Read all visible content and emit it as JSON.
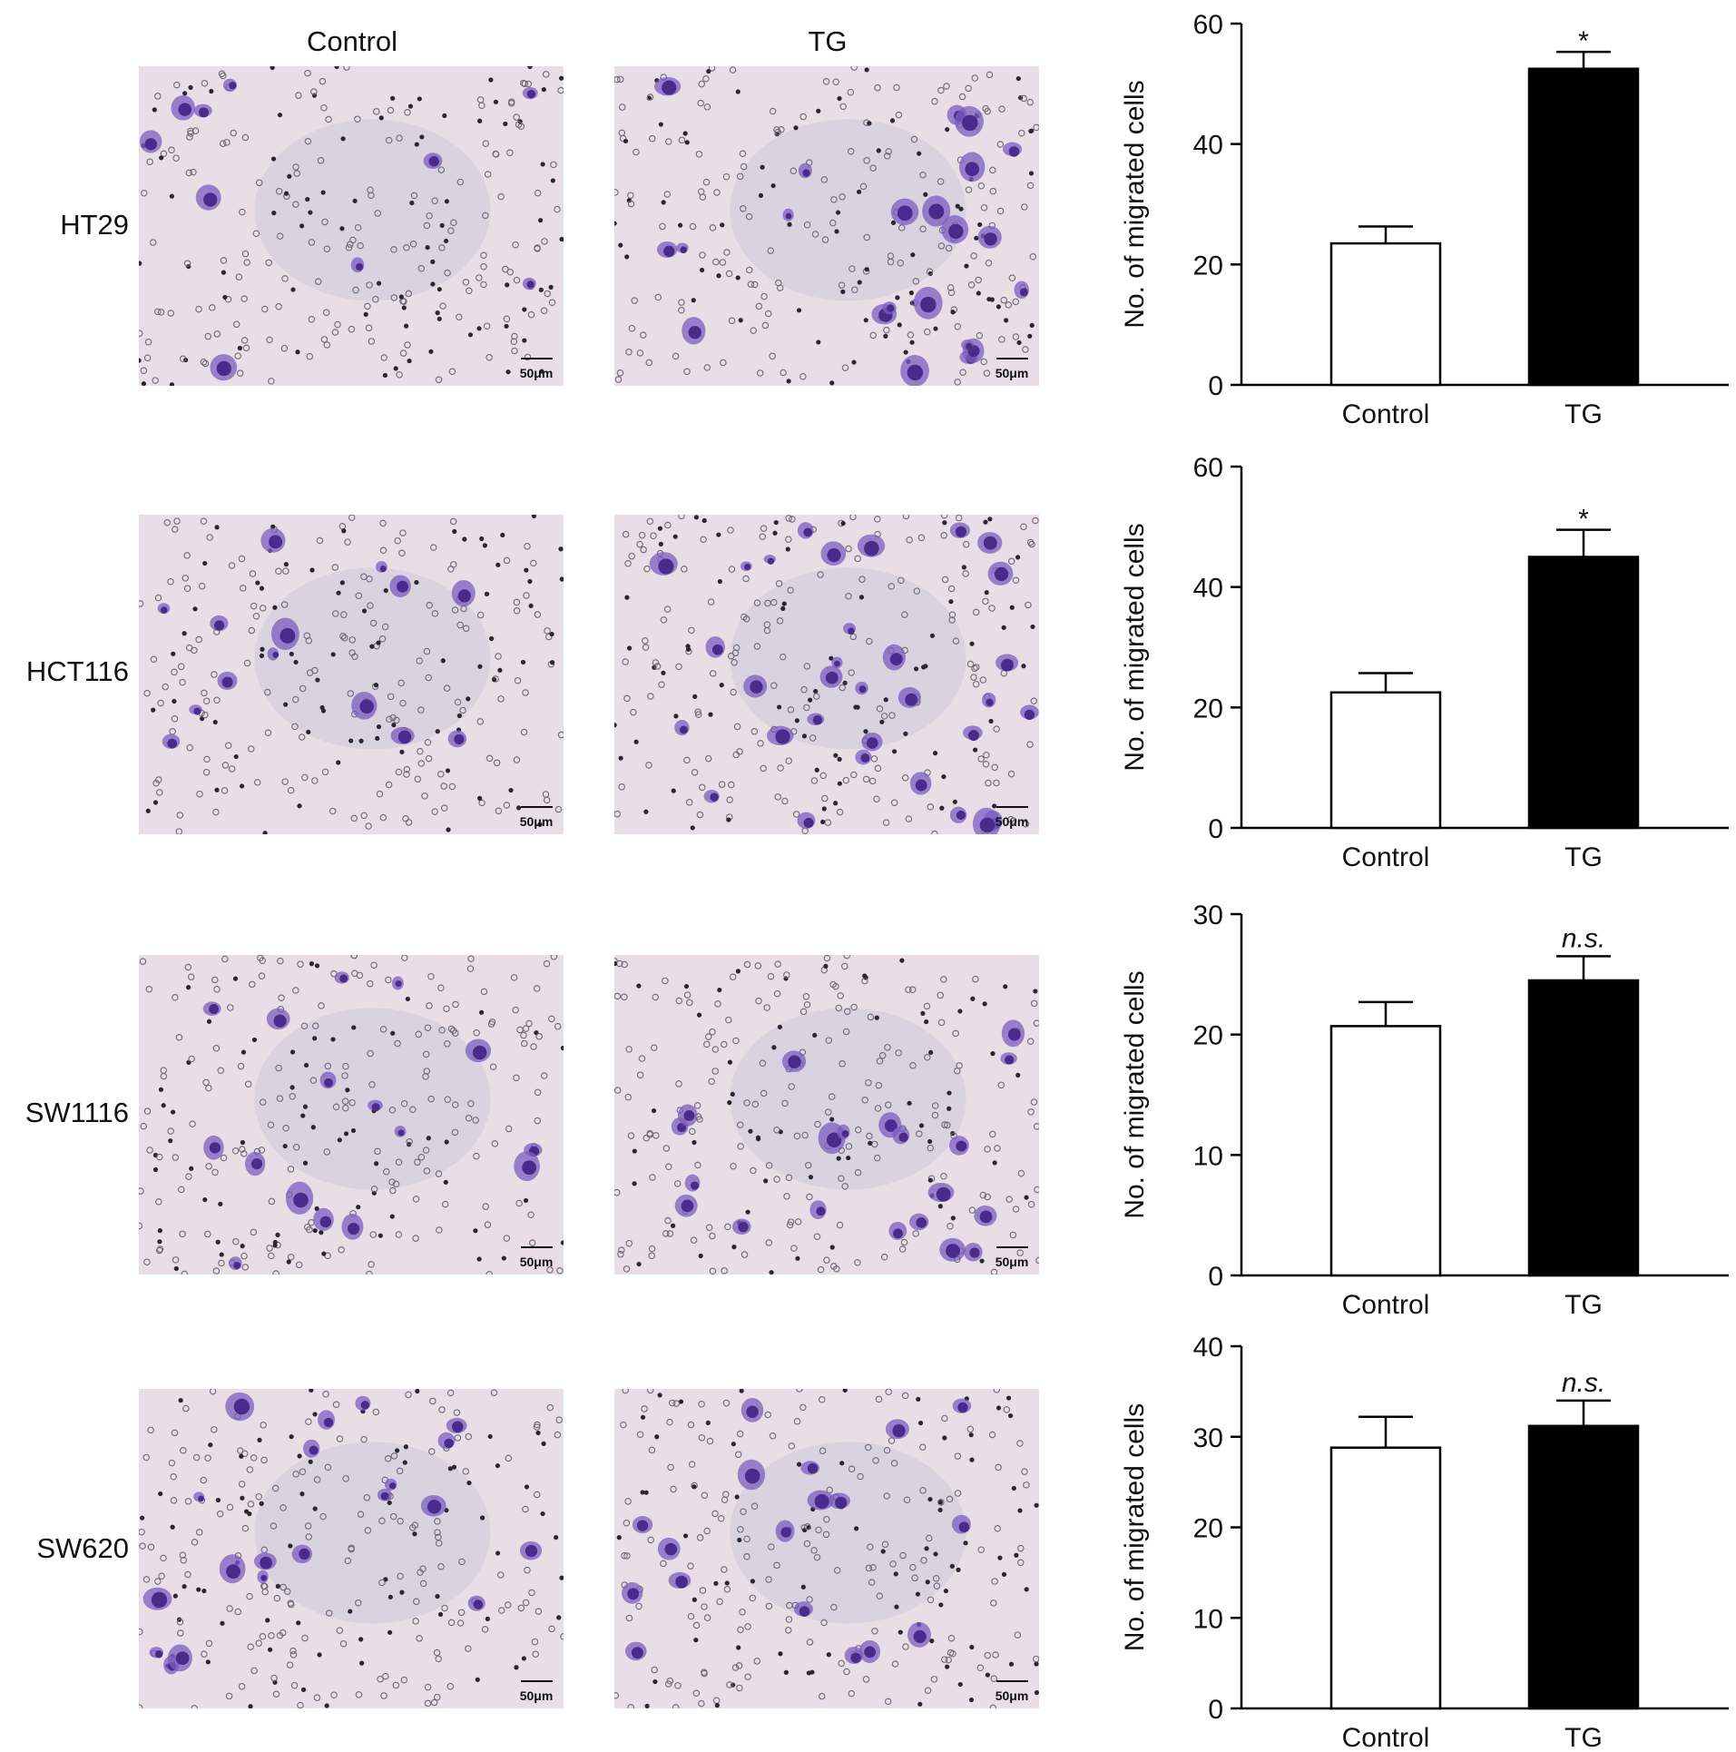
{
  "column_headers": [
    "Control",
    "TG"
  ],
  "scale_bar_label": "50μm",
  "colors": {
    "control_bar": "#ffffff",
    "tg_bar": "#000000",
    "stain": "#4a2a8a",
    "background": "#e9dde6"
  },
  "rows": [
    {
      "label": "HT29"
    },
    {
      "label": "HCT116"
    },
    {
      "label": "SW1116"
    },
    {
      "label": "SW620"
    }
  ],
  "chart_data": [
    {
      "type": "bar",
      "categories": [
        "Control",
        "TG"
      ],
      "values": [
        23.5,
        52.5
      ],
      "errors": [
        2.8,
        2.8
      ],
      "annotations": [
        "",
        "*"
      ],
      "ylabel": "No. of migrated cells",
      "ylim": [
        0,
        60
      ],
      "yticks": [
        0,
        20,
        40,
        60
      ]
    },
    {
      "type": "bar",
      "categories": [
        "Control",
        "TG"
      ],
      "values": [
        22.5,
        45
      ],
      "errors": [
        3.2,
        4.5
      ],
      "annotations": [
        "",
        "*"
      ],
      "ylabel": "No. of migrated cells",
      "ylim": [
        0,
        60
      ],
      "yticks": [
        0,
        20,
        40,
        60
      ]
    },
    {
      "type": "bar",
      "categories": [
        "Control",
        "TG"
      ],
      "values": [
        20.7,
        24.5
      ],
      "errors": [
        2.0,
        2.0
      ],
      "annotations": [
        "",
        "n.s."
      ],
      "ylabel": "No. of migrated cells",
      "ylim": [
        0,
        30
      ],
      "yticks": [
        0,
        10,
        20,
        30
      ]
    },
    {
      "type": "bar",
      "categories": [
        "Control",
        "TG"
      ],
      "values": [
        28.8,
        31.2
      ],
      "errors": [
        3.4,
        2.8
      ],
      "annotations": [
        "",
        "n.s."
      ],
      "ylabel": "No. of migrated cells",
      "ylim": [
        0,
        40
      ],
      "yticks": [
        0,
        10,
        20,
        30,
        40
      ]
    }
  ]
}
